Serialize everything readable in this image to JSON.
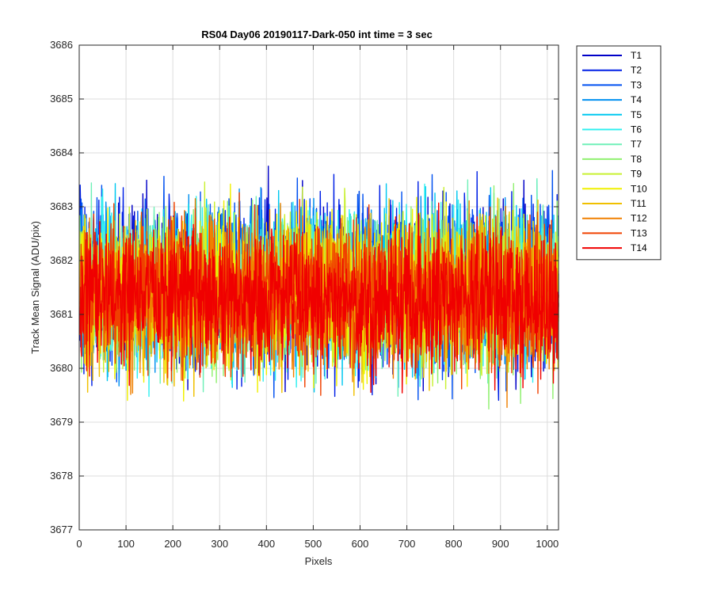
{
  "chart_data": {
    "type": "line",
    "title": "RS04 Day06 20190117-Dark-050 int time = 3 sec",
    "xlabel": "Pixels",
    "ylabel": "Track Mean Signal (ADU/pix)",
    "xlim": [
      0,
      1024
    ],
    "ylim": [
      3677,
      3686
    ],
    "xticks": [
      0,
      100,
      200,
      300,
      400,
      500,
      600,
      700,
      800,
      900,
      1000
    ],
    "yticks": [
      3677,
      3678,
      3679,
      3680,
      3681,
      3682,
      3683,
      3684,
      3685,
      3686
    ],
    "grid": true,
    "legend_position": "outside-top-right",
    "n_points_per_series": 1024,
    "series": [
      {
        "name": "T1",
        "color": "#0000c8",
        "mean": 3681.5,
        "spread": 1.05
      },
      {
        "name": "T2",
        "color": "#0020e6",
        "mean": 3681.55,
        "spread": 1.05
      },
      {
        "name": "T3",
        "color": "#0050f0",
        "mean": 3681.55,
        "spread": 1.05
      },
      {
        "name": "T4",
        "color": "#0090f0",
        "mean": 3681.5,
        "spread": 1.0
      },
      {
        "name": "T5",
        "color": "#00c8f0",
        "mean": 3681.5,
        "spread": 1.0
      },
      {
        "name": "T6",
        "color": "#30f0f0",
        "mean": 3681.45,
        "spread": 1.0
      },
      {
        "name": "T7",
        "color": "#70f0b8",
        "mean": 3681.45,
        "spread": 0.98
      },
      {
        "name": "T8",
        "color": "#90f070",
        "mean": 3681.4,
        "spread": 0.98
      },
      {
        "name": "T9",
        "color": "#c8f030",
        "mean": 3681.4,
        "spread": 0.98
      },
      {
        "name": "T10",
        "color": "#f0f000",
        "mean": 3681.4,
        "spread": 0.98
      },
      {
        "name": "T11",
        "color": "#f0c000",
        "mean": 3681.35,
        "spread": 0.95
      },
      {
        "name": "T12",
        "color": "#f08000",
        "mean": 3681.35,
        "spread": 0.95
      },
      {
        "name": "T13",
        "color": "#f04000",
        "mean": 3681.35,
        "spread": 0.95
      },
      {
        "name": "T14",
        "color": "#f00000",
        "mean": 3681.3,
        "spread": 0.95
      }
    ]
  }
}
